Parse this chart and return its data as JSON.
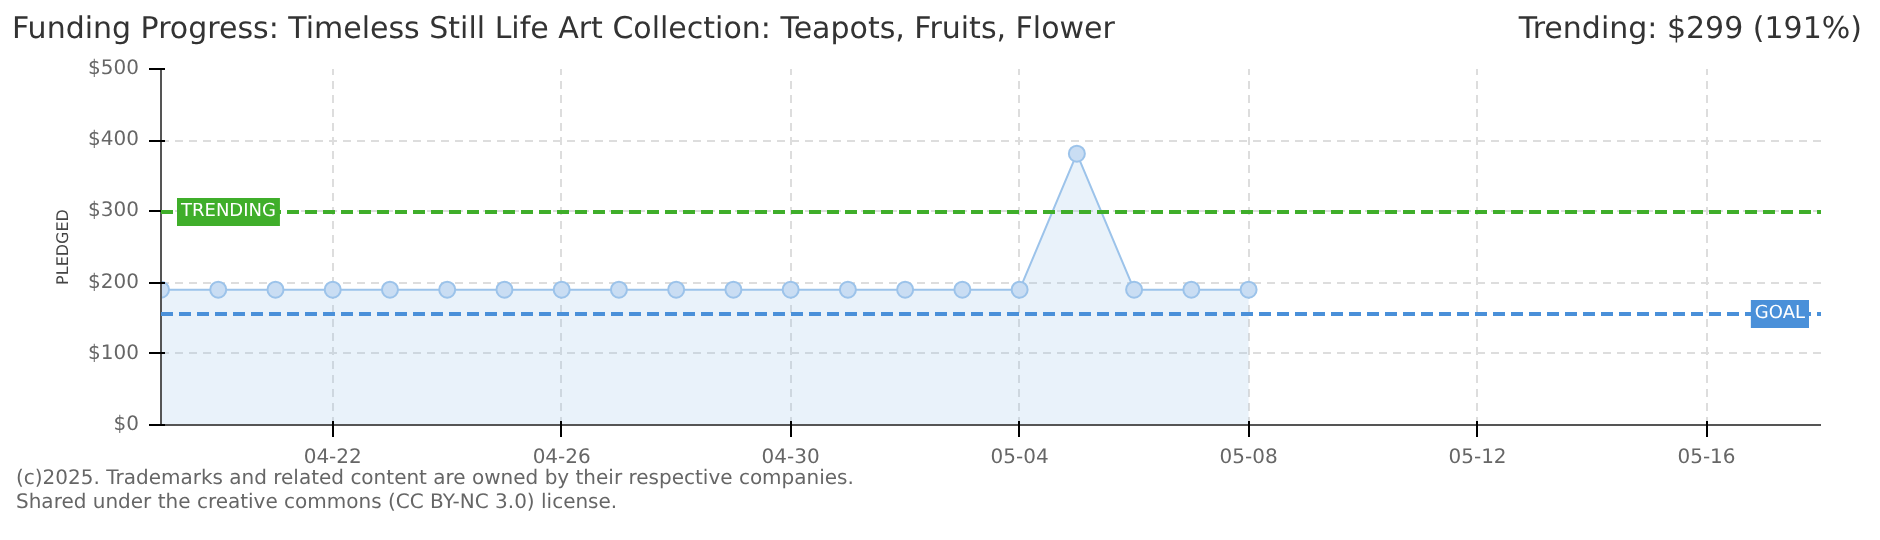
{
  "chart_data": {
    "type": "area",
    "title": "Funding Progress: Timeless Still Life Art Collection: Teapots, Fruits, Flower",
    "annotations": [
      "Trending: $299 (191%)",
      "(c)2025. Trademarks and related content are owned by their respective companies.",
      "Shared under the creative commons (CC BY-NC 3.0) license."
    ],
    "ylabel": "PLEDGED",
    "x": [
      "2025-04-19",
      "2025-04-20",
      "2025-04-21",
      "2025-04-22",
      "2025-04-23",
      "2025-04-24",
      "2025-04-25",
      "2025-04-26",
      "2025-04-27",
      "2025-04-28",
      "2025-04-29",
      "2025-04-30",
      "2025-05-01",
      "2025-05-02",
      "2025-05-03",
      "2025-05-04",
      "2025-05-05",
      "2025-05-06",
      "2025-05-07",
      "2025-05-08"
    ],
    "series": [
      {
        "color": "#9cc3ea",
        "values": [
          190,
          190,
          190,
          190,
          190,
          190,
          190,
          190,
          190,
          190,
          190,
          190,
          190,
          190,
          190,
          190,
          381,
          190,
          190,
          190
        ]
      }
    ],
    "xlim": [
      "2025-04-19",
      "2025-05-18"
    ],
    "xticks": [
      {
        "value": "2025-04-22",
        "label": "04-22"
      },
      {
        "value": "2025-04-26",
        "label": "04-26"
      },
      {
        "value": "2025-04-30",
        "label": "04-30"
      },
      {
        "value": "2025-05-04",
        "label": "05-04"
      },
      {
        "value": "2025-05-08",
        "label": "05-08"
      },
      {
        "value": "2025-05-12",
        "label": "05-12"
      },
      {
        "value": "2025-05-16",
        "label": "05-16"
      }
    ],
    "ylim": [
      0,
      500
    ],
    "yticks": [
      {
        "value": 0,
        "label": "$0"
      },
      {
        "value": 100,
        "label": "$100"
      },
      {
        "value": 200,
        "label": "$200"
      },
      {
        "value": 300,
        "label": "$300"
      },
      {
        "value": 400,
        "label": "$400"
      },
      {
        "value": 500,
        "label": "$500"
      }
    ],
    "grid": true,
    "marker": "circle",
    "ref_lines": [
      {
        "axis": "y",
        "value": 299,
        "label": "TRENDING",
        "color": "#3fae2a",
        "line_style": "dashed"
      },
      {
        "axis": "y",
        "value": 156,
        "label": "GOAL",
        "color": "#4a90d9",
        "line_style": "dashed"
      }
    ]
  }
}
